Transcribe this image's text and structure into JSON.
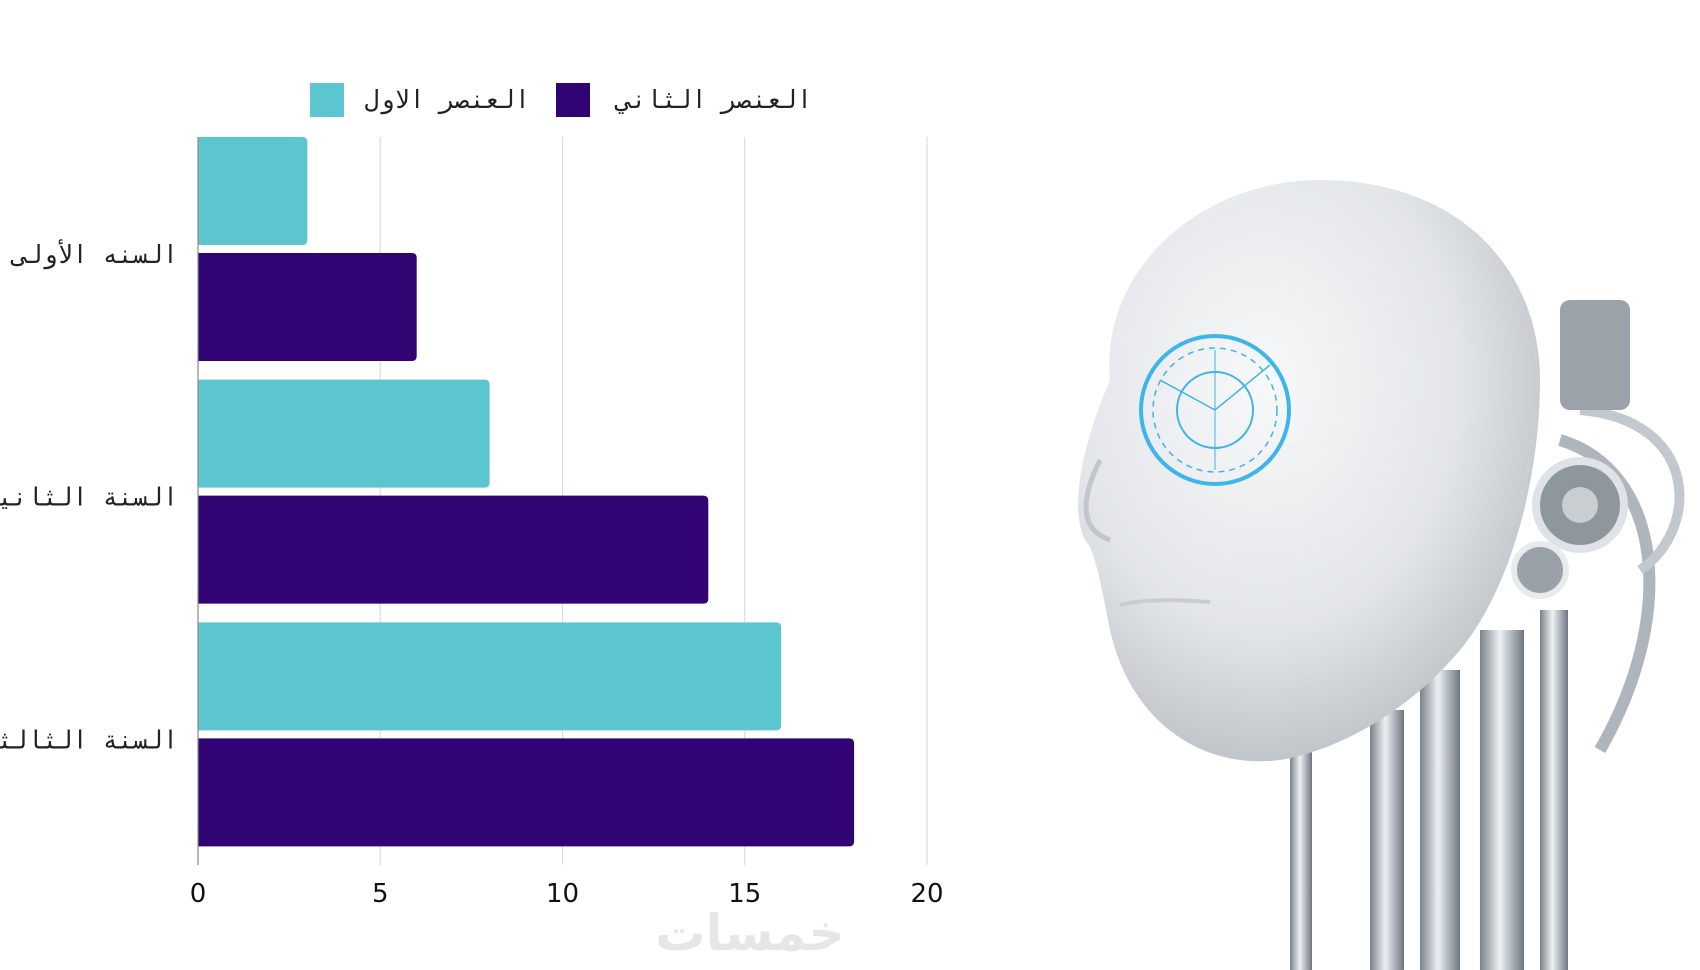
{
  "chart_data": {
    "type": "bar",
    "orientation": "horizontal",
    "categories": [
      "السنه الأولى",
      "السنة الثانية",
      "السنة الثالثة"
    ],
    "series": [
      {
        "name": "العنصر الاول",
        "color": "#5bc6cf",
        "values": [
          3,
          8,
          16
        ]
      },
      {
        "name": "العنصر الثاني",
        "color": "#310474",
        "values": [
          6,
          14,
          18
        ]
      }
    ],
    "xticks": [
      "0",
      "5",
      "10",
      "15",
      "20"
    ],
    "xlim": [
      0,
      20
    ],
    "grid": true,
    "legend_position": "top"
  },
  "watermark": "خمسات",
  "image": {
    "icon": "robot-head-illustration"
  }
}
